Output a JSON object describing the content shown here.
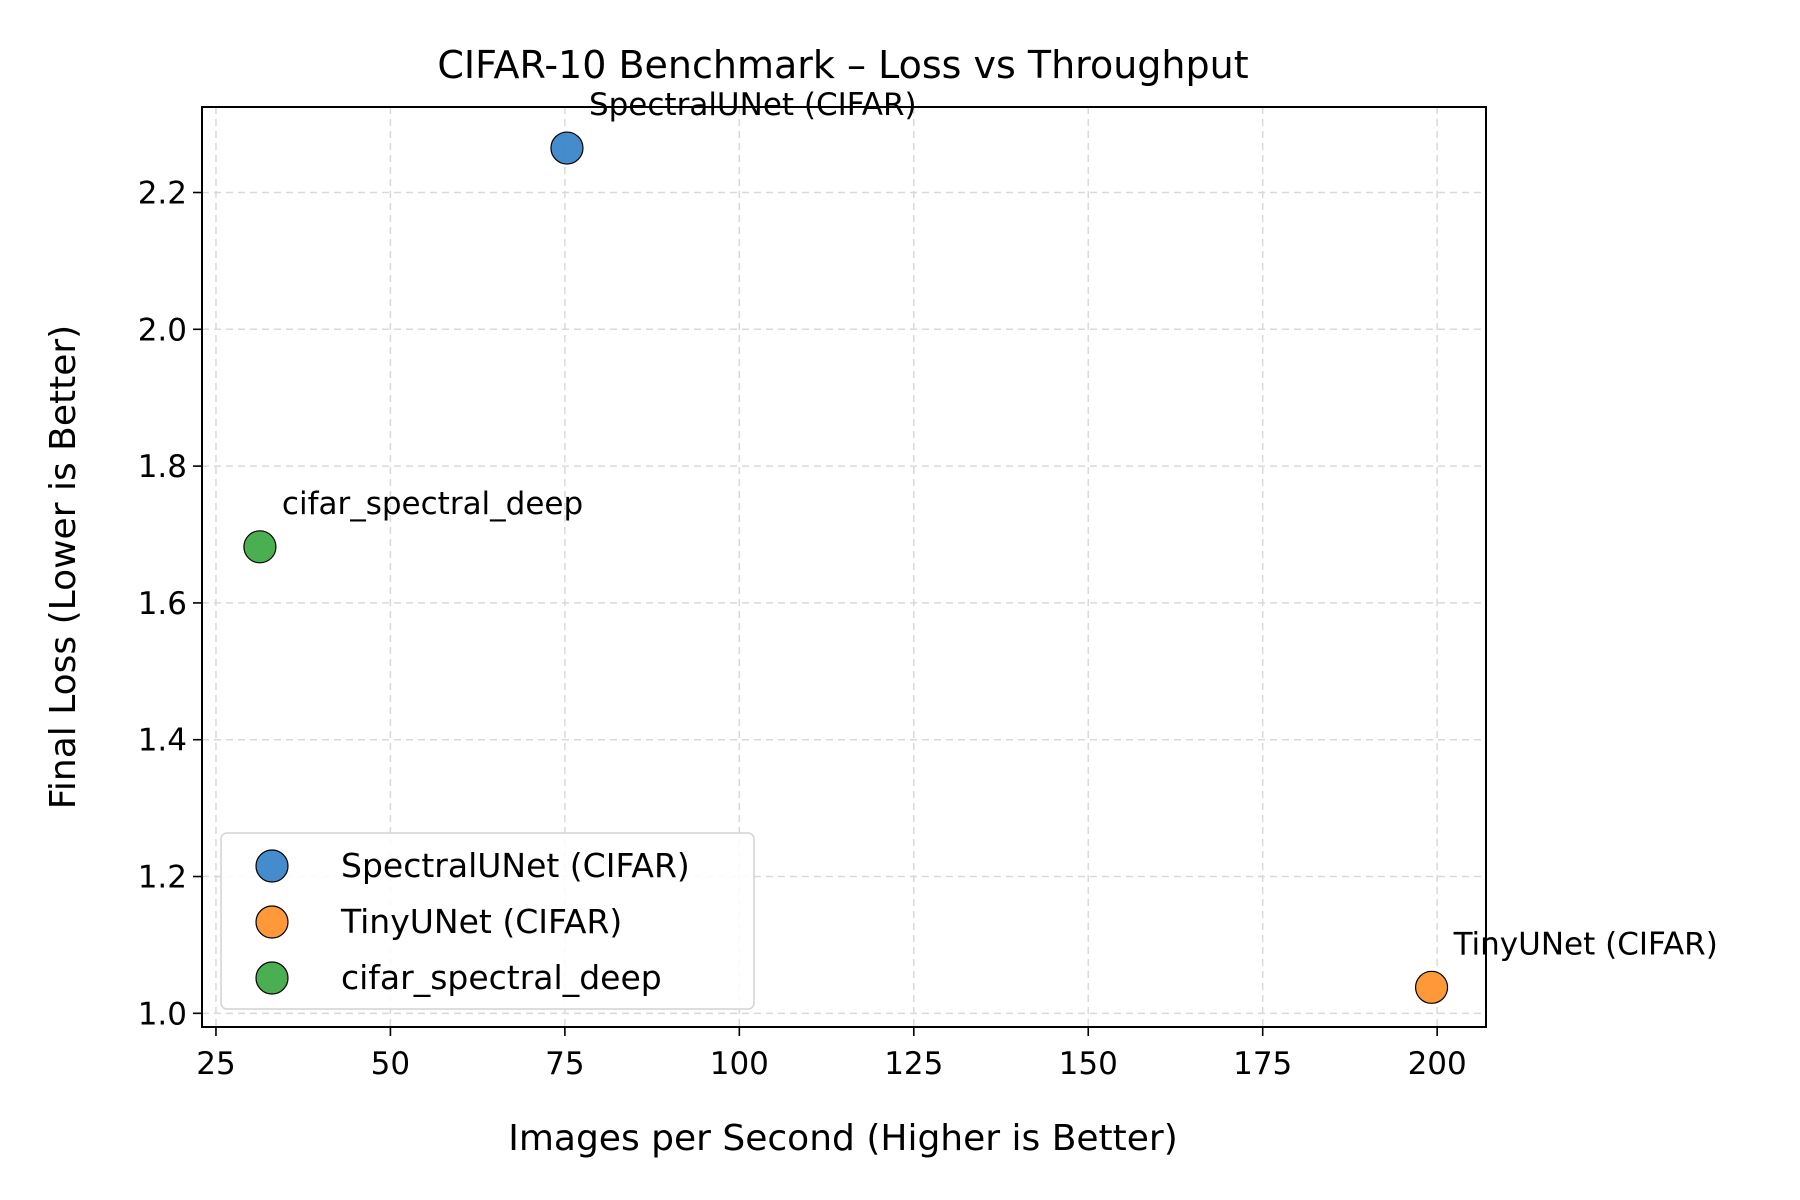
{
  "chart_data": {
    "type": "scatter",
    "title": "CIFAR-10 Benchmark – Loss vs Throughput",
    "xlabel": "Images per Second (Higher is Better)",
    "ylabel": "Final Loss (Lower is Better)",
    "xlim": [
      23,
      207
    ],
    "ylim": [
      0.98,
      2.325
    ],
    "xticks": [
      25,
      50,
      75,
      100,
      125,
      150,
      175,
      200
    ],
    "yticks": [
      1.0,
      1.2,
      1.4,
      1.6,
      1.8,
      2.0,
      2.2
    ],
    "xtick_labels": [
      "25",
      "50",
      "75",
      "100",
      "125",
      "150",
      "175",
      "200"
    ],
    "ytick_labels": [
      "1.0",
      "1.2",
      "1.4",
      "1.6",
      "1.8",
      "2.0",
      "2.2"
    ],
    "grid": true,
    "legend_position": "lower-left",
    "series": [
      {
        "name": "SpectralUNet (CIFAR)",
        "color": "#3a86c8",
        "x": 75.3,
        "y": 2.265,
        "annotation": "SpectralUNet (CIFAR)"
      },
      {
        "name": "TinyUNet (CIFAR)",
        "color": "#ff922e",
        "x": 199.2,
        "y": 1.038,
        "annotation": "TinyUNet (CIFAR)"
      },
      {
        "name": "cifar_spectral_deep",
        "color": "#3fab47",
        "x": 31.3,
        "y": 1.682,
        "annotation": "cifar_spectral_deep"
      }
    ]
  }
}
